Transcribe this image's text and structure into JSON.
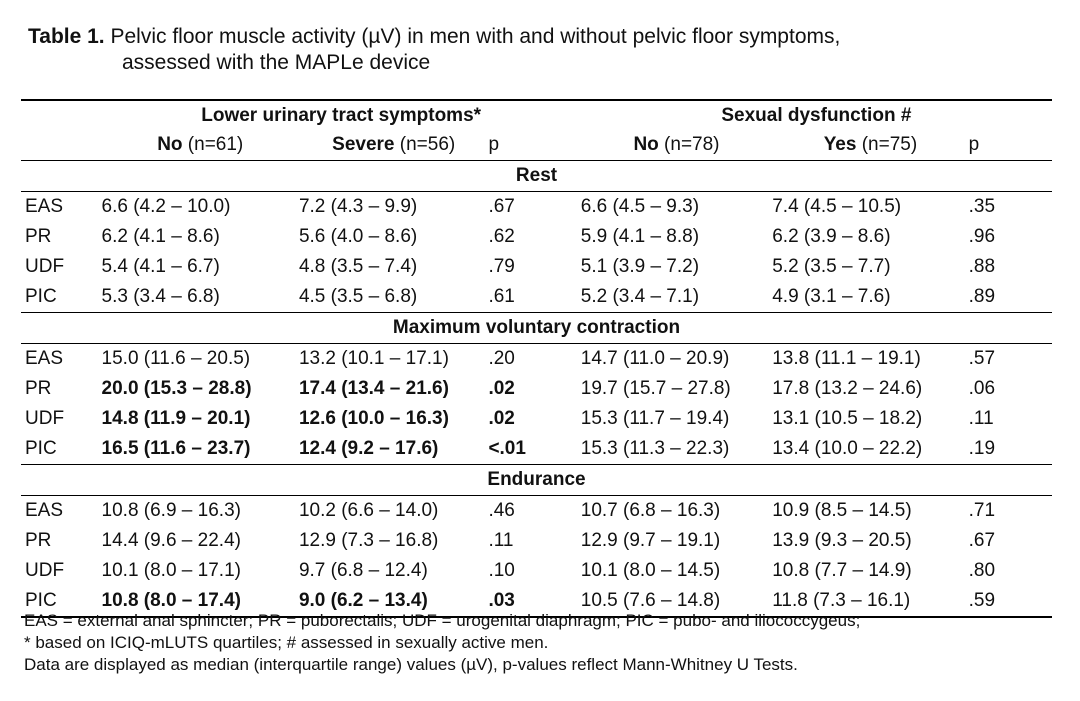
{
  "caption": {
    "label": "Table 1.",
    "line1": "Pelvic floor muscle activity (µV) in men with and without pelvic floor symptoms,",
    "line2": "assessed with the MAPLe device"
  },
  "header": {
    "group1": "Lower urinary tract symptoms*",
    "group2": "Sexual dysfunction #",
    "cols": [
      {
        "label": "No",
        "n": " (n=61)"
      },
      {
        "label": "Severe",
        "n": " (n=56)"
      },
      {
        "label": "p",
        "n": ""
      },
      {
        "label": "No",
        "n": " (n=78)"
      },
      {
        "label": "Yes",
        "n": " (n=75)"
      },
      {
        "label": "p",
        "n": ""
      }
    ]
  },
  "sections": [
    {
      "title": "Rest",
      "rows": [
        {
          "m": "EAS",
          "v": [
            "6.6 (4.2 – 10.0)",
            "7.2 (4.3 – 9.9)",
            ".67",
            "6.6 (4.5 – 9.3)",
            "7.4 (4.5 – 10.5)",
            ".35"
          ]
        },
        {
          "m": "PR",
          "v": [
            "6.2 (4.1 – 8.6)",
            "5.6 (4.0 – 8.6)",
            ".62",
            "5.9 (4.1 – 8.8)",
            "6.2 (3.9 – 8.6)",
            ".96"
          ]
        },
        {
          "m": "UDF",
          "v": [
            "5.4 (4.1 – 6.7)",
            "4.8 (3.5 – 7.4)",
            ".79",
            "5.1 (3.9 – 7.2)",
            "5.2 (3.5 – 7.7)",
            ".88"
          ]
        },
        {
          "m": "PIC",
          "v": [
            "5.3 (3.4 – 6.8)",
            "4.5 (3.5 – 6.8)",
            ".61",
            "5.2 (3.4 – 7.1)",
            "4.9 (3.1 – 7.6)",
            ".89"
          ]
        }
      ]
    },
    {
      "title": "Maximum voluntary contraction",
      "rows": [
        {
          "m": "EAS",
          "v": [
            "15.0 (11.6 – 20.5)",
            "13.2 (10.1 – 17.1)",
            ".20",
            "14.7 (11.0 – 20.9)",
            "13.8 (11.1 – 19.1)",
            ".57"
          ]
        },
        {
          "m": "PR",
          "v": [
            "20.0 (15.3 – 28.8)",
            "17.4 (13.4 – 21.6)",
            ".02",
            "19.7 (15.7 – 27.8)",
            "17.8 (13.2 – 24.6)",
            ".06"
          ]
        },
        {
          "m": "UDF",
          "v": [
            "14.8 (11.9 – 20.1)",
            "12.6 (10.0 – 16.3)",
            ".02",
            "15.3 (11.7 – 19.4)",
            "13.1 (10.5 – 18.2)",
            ".11"
          ]
        },
        {
          "m": "PIC",
          "v": [
            "16.5 (11.6 – 23.7)",
            "12.4 (9.2 – 17.6)",
            "<.01",
            "15.3 (11.3 – 22.3)",
            "13.4 (10.0 – 22.2)",
            ".19"
          ]
        }
      ]
    },
    {
      "title": "Endurance",
      "rows": [
        {
          "m": "EAS",
          "v": [
            "10.8 (6.9 – 16.3)",
            "10.2 (6.6 – 14.0)",
            ".46",
            "10.7 (6.8 – 16.3)",
            "10.9 (8.5 – 14.5)",
            ".71"
          ]
        },
        {
          "m": "PR",
          "v": [
            "14.4 (9.6 – 22.4)",
            "12.9 (7.3 – 16.8)",
            ".11",
            "12.9 (9.7 – 19.1)",
            "13.9 (9.3 – 20.5)",
            ".67"
          ]
        },
        {
          "m": "UDF",
          "v": [
            "10.1 (8.0 – 17.1)",
            "9.7 (6.8 – 12.4)",
            ".10",
            "10.1 (8.0 – 14.5)",
            "10.8 (7.7 – 14.9)",
            ".80"
          ]
        },
        {
          "m": "PIC",
          "v": [
            "10.8 (8.0 – 17.4)",
            "9.0 (6.2 – 13.4)",
            ".03",
            "10.5 (7.6 – 14.8)",
            "11.8 (7.3 – 16.1)",
            ".59"
          ]
        }
      ]
    }
  ],
  "footnotes": [
    "EAS = external anal sphincter; PR = puborectalis; UDF = urogenital diaphragm; PIC = pubo- and iliococcygeus;",
    "* based on ICIQ-mLUTS quartiles; # assessed in sexually active men.",
    "Data are displayed as median (interquartile range) values (µV), p-values reflect Mann-Whitney U Tests."
  ]
}
